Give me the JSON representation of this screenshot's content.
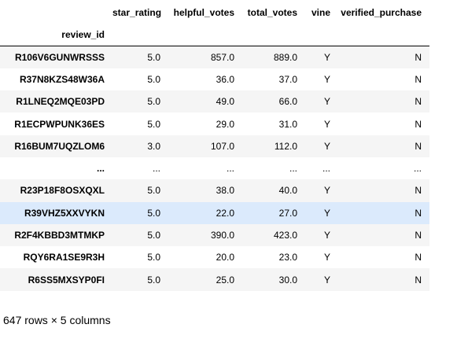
{
  "table": {
    "column_headers": [
      "star_rating",
      "helpful_votes",
      "total_votes",
      "vine",
      "verified_purchase"
    ],
    "index_name": "review_id",
    "rows": [
      {
        "index": "R106V6GUNWRSSS",
        "values": [
          "5.0",
          "857.0",
          "889.0",
          "Y",
          "N"
        ]
      },
      {
        "index": "R37N8KZS48W36A",
        "values": [
          "5.0",
          "36.0",
          "37.0",
          "Y",
          "N"
        ]
      },
      {
        "index": "R1LNEQ2MQE03PD",
        "values": [
          "5.0",
          "49.0",
          "66.0",
          "Y",
          "N"
        ]
      },
      {
        "index": "R1ECPWPUNK36ES",
        "values": [
          "5.0",
          "29.0",
          "31.0",
          "Y",
          "N"
        ]
      },
      {
        "index": "R16BUM7UQZLOM6",
        "values": [
          "3.0",
          "107.0",
          "112.0",
          "Y",
          "N"
        ]
      },
      {
        "index": "...",
        "values": [
          "...",
          "...",
          "...",
          "...",
          "..."
        ]
      },
      {
        "index": "R23P18F8OSXQXL",
        "values": [
          "5.0",
          "38.0",
          "40.0",
          "Y",
          "N"
        ]
      },
      {
        "index": "R39VHZ5XXVYKN",
        "values": [
          "5.0",
          "22.0",
          "27.0",
          "Y",
          "N"
        ]
      },
      {
        "index": "R2F4KBBD3MTMKP",
        "values": [
          "5.0",
          "390.0",
          "423.0",
          "Y",
          "N"
        ]
      },
      {
        "index": "RQY6RA1SE9R3H",
        "values": [
          "5.0",
          "20.0",
          "23.0",
          "Y",
          "N"
        ]
      },
      {
        "index": "R6SS5MXSYP0FI",
        "values": [
          "5.0",
          "25.0",
          "30.0",
          "Y",
          "N"
        ]
      }
    ],
    "highlighted_row_index": "R39VHZ5XXVYKN"
  },
  "summary": "647 rows × 5 columns"
}
